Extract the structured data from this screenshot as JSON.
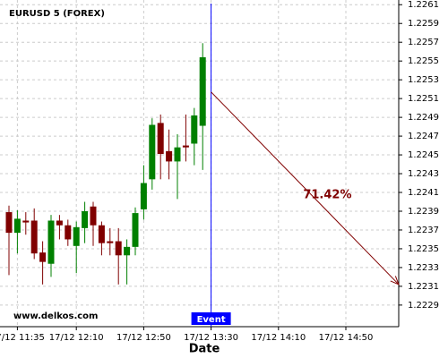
{
  "chart_data": {
    "type": "candlestick",
    "title": "EURUSD 5 (FOREX)",
    "watermark": "www.delkos.com",
    "x_label": "Date",
    "categories": [
      null,
      "17/12 11:35",
      null,
      null,
      null,
      null,
      null,
      null,
      "17/12 12:10",
      null,
      null,
      null,
      null,
      null,
      null,
      null,
      "17/12 12:50",
      null,
      null,
      null,
      null,
      null,
      null,
      null,
      "17/12 13:30",
      null,
      null,
      null,
      null,
      null,
      null,
      null,
      "17/12 14:10",
      null,
      null,
      null,
      null,
      null,
      null,
      null,
      "17/12 14:50",
      null,
      null,
      null,
      null,
      null,
      null
    ],
    "open": [
      1.22389,
      1.22367,
      1.2238,
      1.2238,
      1.22346,
      1.22334,
      1.2238,
      1.22375,
      1.22353,
      1.22372,
      1.22395,
      1.22375,
      1.22358,
      1.22358,
      1.22343,
      1.22352,
      1.22392,
      1.22424,
      1.22484,
      1.22454,
      1.22443,
      1.2246,
      1.22462,
      1.22481,
      null,
      null,
      null,
      null,
      null,
      null,
      null,
      null,
      null,
      null,
      null,
      null,
      null,
      null,
      null,
      null,
      null,
      null,
      null,
      null,
      null,
      null,
      null
    ],
    "high": [
      1.22396,
      1.22391,
      1.22389,
      1.22393,
      1.22358,
      1.22386,
      1.22386,
      1.22381,
      1.22379,
      1.224,
      1.224,
      1.22379,
      1.22372,
      1.22372,
      1.2236,
      1.22394,
      1.22439,
      1.22489,
      1.22493,
      1.22477,
      1.22472,
      1.22493,
      1.225,
      1.22569,
      null,
      null,
      null,
      null,
      null,
      null,
      null,
      null,
      null,
      null,
      null,
      null,
      null,
      null,
      null,
      null,
      null,
      null,
      null,
      null,
      null,
      null,
      null
    ],
    "low": [
      1.22322,
      1.22345,
      1.22365,
      1.22339,
      1.22312,
      1.2232,
      1.2236,
      1.22353,
      1.22324,
      1.22356,
      1.22353,
      1.22343,
      1.22343,
      1.22312,
      1.22312,
      1.22343,
      1.22381,
      1.22413,
      1.22424,
      1.22424,
      1.22403,
      1.22443,
      1.22439,
      1.22434,
      null,
      null,
      null,
      null,
      null,
      null,
      null,
      null,
      null,
      null,
      null,
      null,
      null,
      null,
      null,
      null,
      null,
      null,
      null,
      null,
      null,
      null,
      null
    ],
    "close": [
      1.22367,
      1.22382,
      1.22378,
      1.22345,
      1.22336,
      1.2238,
      1.22375,
      1.2236,
      1.22373,
      1.2239,
      1.22375,
      1.22356,
      1.22356,
      1.22343,
      1.22352,
      1.22388,
      1.2242,
      1.22482,
      1.22451,
      1.22443,
      1.22458,
      1.22458,
      1.22492,
      1.22554,
      null,
      null,
      null,
      null,
      null,
      null,
      null,
      null,
      null,
      null,
      null,
      null,
      null,
      null,
      null,
      null,
      null,
      null,
      null,
      null,
      null,
      null,
      null
    ],
    "up_color": "#008000",
    "down_color": "#800000",
    "ylim": [
      1.22267,
      1.22615
    ],
    "yticks": [
      1.2229,
      1.2231,
      1.2233,
      1.2235,
      1.2237,
      1.2239,
      1.2241,
      1.2243,
      1.2245,
      1.2247,
      1.2249,
      1.2251,
      1.2253,
      1.2255,
      1.2257,
      1.2259,
      1.2261
    ],
    "grid": true,
    "event": {
      "label": "Event",
      "at": "17/12 13:30",
      "color": "#0000ff"
    },
    "projection": {
      "label": "71.42%",
      "start": 1.22517,
      "end": 1.22312,
      "color": "#800000"
    }
  }
}
